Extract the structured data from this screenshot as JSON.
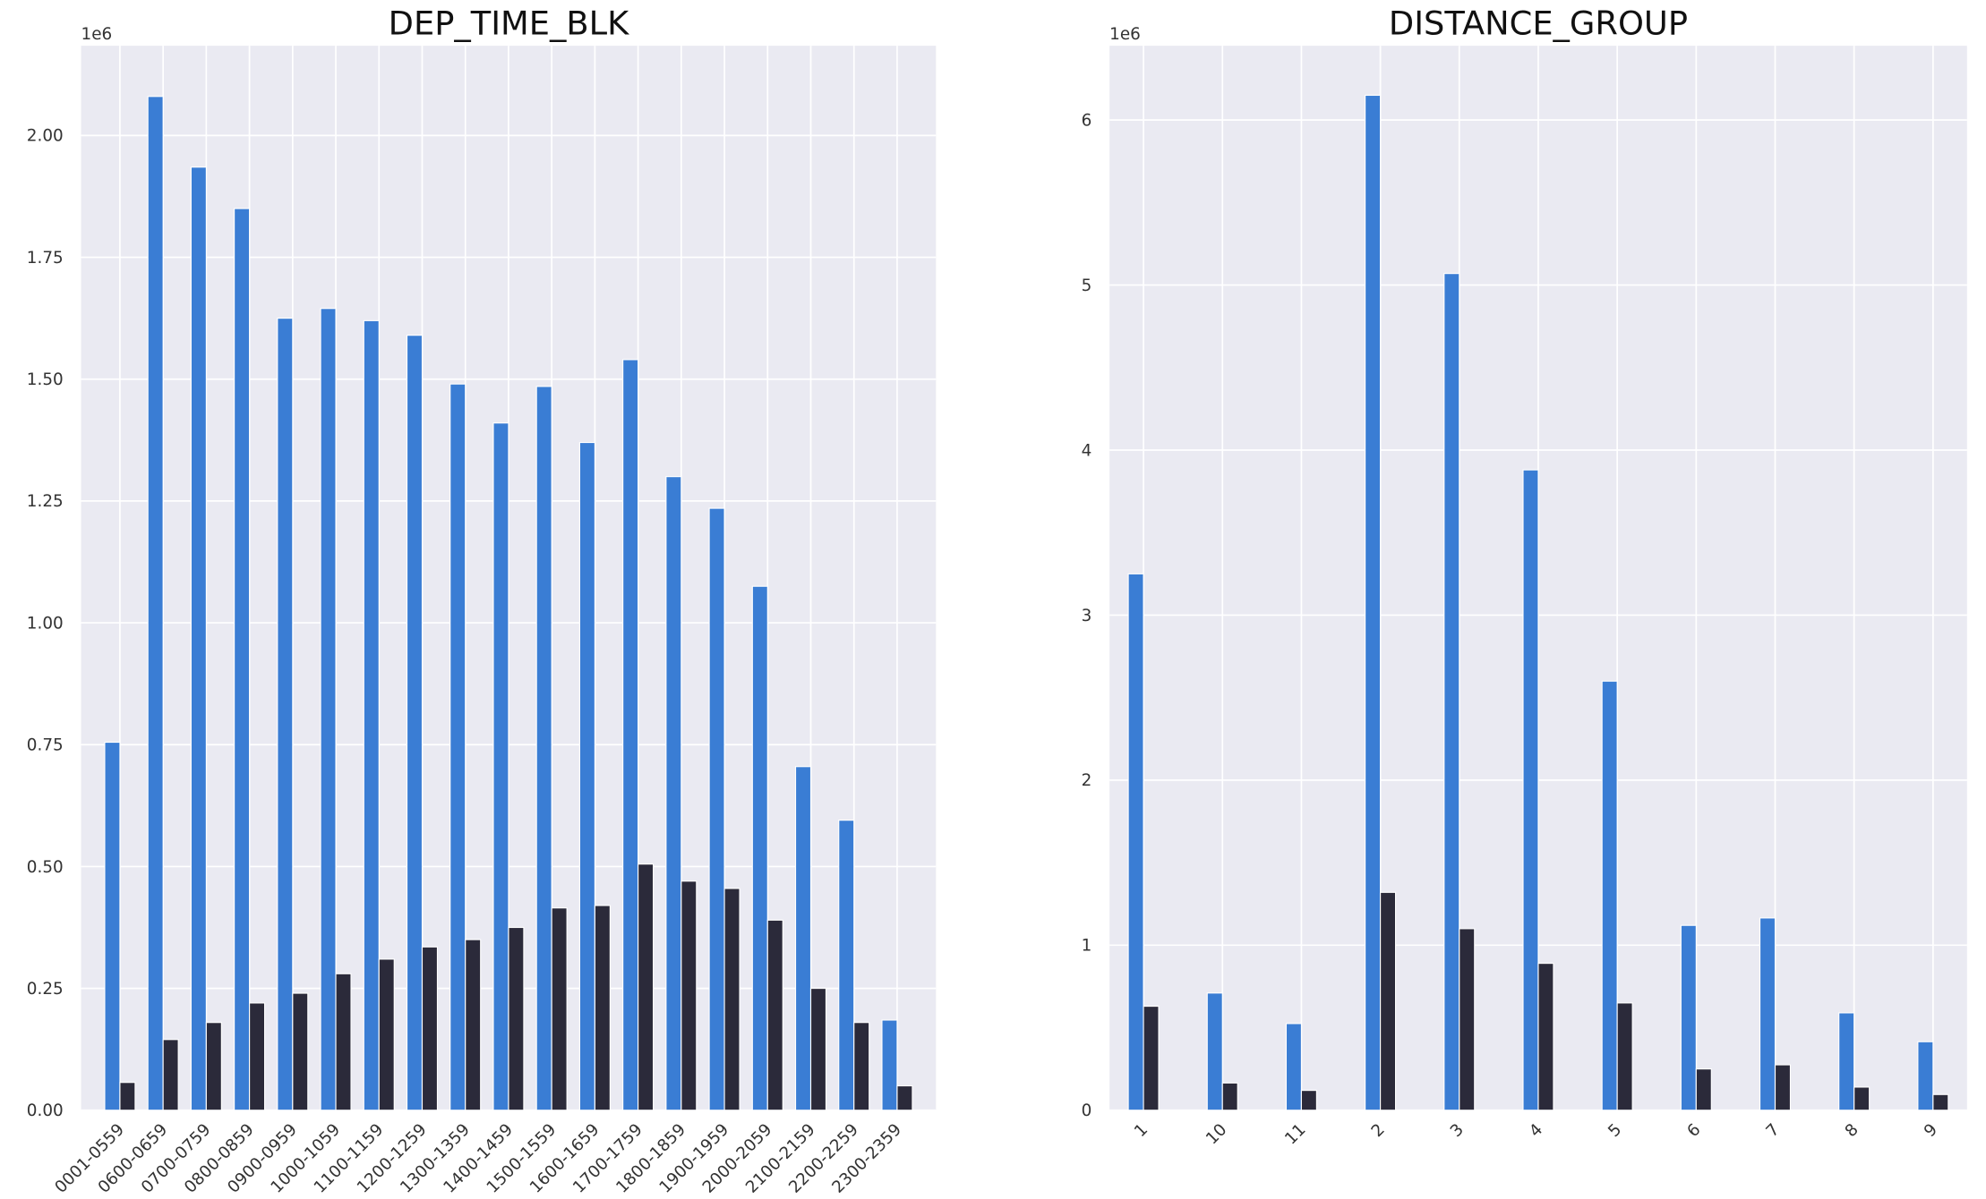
{
  "chart_data": [
    {
      "type": "bar",
      "title": "DEP_TIME_BLK",
      "y_offset_label": "1e6",
      "categories": [
        "0001-0559",
        "0600-0659",
        "0700-0759",
        "0800-0859",
        "0900-0959",
        "1000-1059",
        "1100-1159",
        "1200-1259",
        "1300-1359",
        "1400-1459",
        "1500-1559",
        "1600-1659",
        "1700-1759",
        "1800-1859",
        "1900-1959",
        "2000-2059",
        "2100-2159",
        "2200-2259",
        "2300-2359"
      ],
      "series": [
        {
          "color": "#3a7dd4",
          "values": [
            755000,
            2080000,
            1935000,
            1850000,
            1625000,
            1645000,
            1620000,
            1590000,
            1490000,
            1410000,
            1485000,
            1370000,
            1540000,
            1300000,
            1235000,
            1075000,
            705000,
            595000,
            185000
          ]
        },
        {
          "color": "#2b2a3a",
          "values": [
            57000,
            145000,
            180000,
            220000,
            240000,
            280000,
            310000,
            335000,
            350000,
            375000,
            415000,
            420000,
            505000,
            470000,
            455000,
            390000,
            250000,
            180000,
            50000
          ]
        }
      ],
      "ylim": [
        0,
        2184000
      ],
      "yticks": [
        {
          "value": 0,
          "label": "0.00"
        },
        {
          "value": 250000,
          "label": "0.25"
        },
        {
          "value": 500000,
          "label": "0.50"
        },
        {
          "value": 750000,
          "label": "0.75"
        },
        {
          "value": 1000000,
          "label": "1.00"
        },
        {
          "value": 1250000,
          "label": "1.25"
        },
        {
          "value": 1500000,
          "label": "1.50"
        },
        {
          "value": 1750000,
          "label": "1.75"
        },
        {
          "value": 2000000,
          "label": "2.00"
        }
      ],
      "grid": true
    },
    {
      "type": "bar",
      "title": "DISTANCE_GROUP",
      "y_offset_label": "1e6",
      "categories": [
        "1",
        "10",
        "11",
        "2",
        "3",
        "4",
        "5",
        "6",
        "7",
        "8",
        "9"
      ],
      "series": [
        {
          "color": "#3a7dd4",
          "values": [
            3250000,
            710000,
            525000,
            6150000,
            5070000,
            3880000,
            2600000,
            1120000,
            1165000,
            590000,
            415000
          ]
        },
        {
          "color": "#2b2a3a",
          "values": [
            630000,
            165000,
            120000,
            1320000,
            1100000,
            890000,
            650000,
            250000,
            275000,
            140000,
            95000
          ]
        }
      ],
      "ylim": [
        0,
        6450000
      ],
      "yticks": [
        0,
        1000000,
        2000000,
        3000000,
        4000000,
        5000000,
        6000000
      ],
      "ytick_labels": [
        "0",
        "1",
        "2",
        "3",
        "4",
        "5",
        "6"
      ],
      "grid": true
    }
  ]
}
